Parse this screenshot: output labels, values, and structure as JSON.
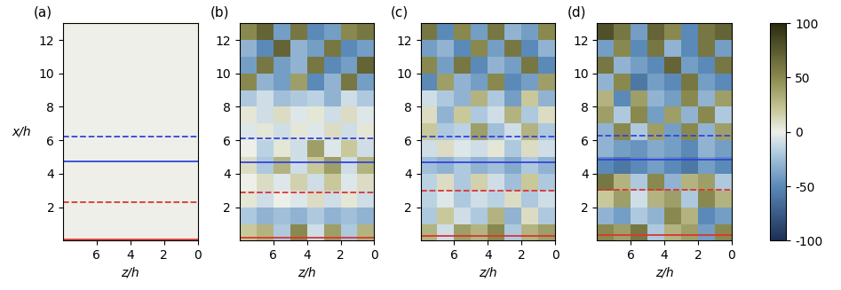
{
  "colorbar": {
    "lim": [
      -100,
      100
    ],
    "ticks": [
      -100,
      -50,
      0,
      50,
      100
    ]
  },
  "chart_data": [
    {
      "type": "heatmap",
      "title": "(a)",
      "xlabel": "z/h",
      "ylabel": "x/h",
      "xlim": [
        8,
        0
      ],
      "xticks": [
        6,
        4,
        2,
        0
      ],
      "ylim": [
        0,
        13
      ],
      "yticks": [
        2,
        4,
        6,
        8,
        10,
        12
      ],
      "z_bins": [
        0,
        1,
        2,
        3,
        4,
        5,
        6,
        7,
        8
      ],
      "x_bins": [
        0,
        1,
        2,
        3,
        4,
        5,
        6,
        7,
        8,
        9,
        10,
        11,
        12,
        13
      ],
      "cells": [
        [
          0,
          0,
          0,
          0,
          0,
          0,
          0,
          0
        ],
        [
          0,
          0,
          0,
          0,
          0,
          0,
          0,
          0
        ],
        [
          0,
          0,
          0,
          0,
          0,
          0,
          0,
          0
        ],
        [
          0,
          0,
          0,
          0,
          0,
          0,
          0,
          0
        ],
        [
          0,
          0,
          0,
          0,
          0,
          0,
          0,
          0
        ],
        [
          0,
          0,
          0,
          0,
          0,
          0,
          0,
          0
        ],
        [
          0,
          0,
          0,
          0,
          0,
          0,
          0,
          0
        ],
        [
          0,
          0,
          0,
          0,
          0,
          0,
          0,
          0
        ],
        [
          0,
          0,
          0,
          0,
          0,
          0,
          0,
          0
        ],
        [
          0,
          0,
          0,
          0,
          0,
          0,
          0,
          0
        ],
        [
          0,
          0,
          0,
          0,
          0,
          0,
          0,
          0
        ],
        [
          0,
          0,
          0,
          0,
          0,
          0,
          0,
          0
        ],
        [
          0,
          0,
          0,
          0,
          0,
          0,
          0,
          0
        ]
      ],
      "lines": [
        {
          "value": 6.2,
          "color": "#3344dd",
          "line_style": "dashed"
        },
        {
          "value": 4.75,
          "color": "#3344dd",
          "line_style": "solid"
        },
        {
          "value": 2.3,
          "color": "#dd3333",
          "line_style": "dashed"
        },
        {
          "value": 0.05,
          "color": "#dd3333",
          "line_style": "solid"
        }
      ]
    },
    {
      "type": "heatmap",
      "title": "(b)",
      "xlabel": "z/h",
      "xlim": [
        8,
        0
      ],
      "xticks": [
        6,
        4,
        2,
        0
      ],
      "ylim": [
        0,
        13
      ],
      "yticks": [
        2,
        4,
        6,
        8,
        10,
        12
      ],
      "z_bins": [
        0,
        1,
        2,
        3,
        4,
        5,
        6,
        7,
        8
      ],
      "x_bins": [
        0,
        1,
        2,
        3,
        4,
        5,
        6,
        7,
        8,
        9,
        10,
        11,
        12,
        13
      ],
      "cells": [
        [
          30,
          -20,
          40,
          -10,
          50,
          -20,
          30,
          20
        ],
        [
          -30,
          -25,
          -30,
          -20,
          -30,
          -25,
          -30,
          -20
        ],
        [
          -10,
          5,
          -10,
          10,
          -5,
          0,
          -10,
          5
        ],
        [
          10,
          -5,
          20,
          -10,
          15,
          -5,
          10,
          0
        ],
        [
          30,
          -10,
          40,
          20,
          -10,
          30,
          -20,
          10
        ],
        [
          -10,
          20,
          -5,
          40,
          -10,
          5,
          -15,
          0
        ],
        [
          5,
          -10,
          10,
          -5,
          5,
          -10,
          5,
          -5
        ],
        [
          -5,
          10,
          -10,
          5,
          -5,
          10,
          -10,
          5
        ],
        [
          -20,
          -10,
          -30,
          -15,
          -20,
          -25,
          -10,
          -20
        ],
        [
          -40,
          60,
          -30,
          -50,
          40,
          -40,
          -30,
          50
        ],
        [
          70,
          -40,
          -50,
          60,
          -30,
          -40,
          60,
          -40
        ],
        [
          -40,
          -50,
          60,
          -40,
          -30,
          70,
          -50,
          -30
        ],
        [
          60,
          50,
          -40,
          -50,
          60,
          -40,
          70,
          50
        ]
      ],
      "lines": [
        {
          "value": 6.1,
          "color": "#3344dd",
          "line_style": "dashed"
        },
        {
          "value": 4.7,
          "color": "#3344dd",
          "line_style": "solid"
        },
        {
          "value": 2.9,
          "color": "#dd3333",
          "line_style": "dashed"
        },
        {
          "value": 0.2,
          "color": "#dd3333",
          "line_style": "solid"
        }
      ]
    },
    {
      "type": "heatmap",
      "title": "(c)",
      "xlabel": "z/h",
      "xlim": [
        8,
        0
      ],
      "xticks": [
        6,
        4,
        2,
        0
      ],
      "ylim": [
        0,
        13
      ],
      "yticks": [
        2,
        4,
        6,
        8,
        10,
        12
      ],
      "z_bins": [
        0,
        1,
        2,
        3,
        4,
        5,
        6,
        7,
        8
      ],
      "x_bins": [
        0,
        1,
        2,
        3,
        4,
        5,
        6,
        7,
        8,
        9,
        10,
        11,
        12,
        13
      ],
      "cells": [
        [
          40,
          30,
          -20,
          50,
          30,
          40,
          -10,
          30
        ],
        [
          -20,
          10,
          -30,
          30,
          -20,
          -10,
          20,
          -20
        ],
        [
          -10,
          -20,
          10,
          -15,
          -10,
          -20,
          -5,
          -15
        ],
        [
          -20,
          20,
          -25,
          -10,
          15,
          -20,
          10,
          -15
        ],
        [
          -30,
          -20,
          -35,
          -25,
          -30,
          -20,
          -30,
          -25
        ],
        [
          -10,
          10,
          -20,
          5,
          -10,
          -5,
          10,
          -10
        ],
        [
          -20,
          30,
          -10,
          -25,
          40,
          -15,
          -20,
          20
        ],
        [
          10,
          -20,
          30,
          -10,
          -20,
          20,
          -30,
          10
        ],
        [
          -30,
          20,
          -40,
          -20,
          30,
          -30,
          -20,
          -10
        ],
        [
          40,
          -40,
          -50,
          50,
          -40,
          -30,
          40,
          -50
        ],
        [
          -50,
          60,
          -40,
          -30,
          -50,
          60,
          -40,
          50
        ],
        [
          -30,
          -50,
          60,
          -40,
          50,
          -50,
          -30,
          -40
        ],
        [
          50,
          -40,
          -30,
          60,
          -40,
          50,
          -50,
          60
        ]
      ],
      "lines": [
        {
          "value": 6.2,
          "color": "#3344dd",
          "line_style": "dashed"
        },
        {
          "value": 4.7,
          "color": "#3344dd",
          "line_style": "solid"
        },
        {
          "value": 3.0,
          "color": "#dd3333",
          "line_style": "dashed"
        },
        {
          "value": 0.3,
          "color": "#dd3333",
          "line_style": "solid"
        }
      ]
    },
    {
      "type": "heatmap",
      "title": "(d)",
      "xlabel": "z/h",
      "xlim": [
        8,
        0
      ],
      "xticks": [
        6,
        4,
        2,
        0
      ],
      "ylim": [
        0,
        13
      ],
      "yticks": [
        2,
        4,
        6,
        8,
        10,
        12
      ],
      "z_bins": [
        0,
        1,
        2,
        3,
        4,
        5,
        6,
        7,
        8
      ],
      "x_bins": [
        0,
        1,
        2,
        3,
        4,
        5,
        6,
        7,
        8,
        9,
        10,
        11,
        12,
        13
      ],
      "cells": [
        [
          50,
          -40,
          40,
          30,
          -20,
          60,
          40,
          50
        ],
        [
          -40,
          -50,
          30,
          50,
          -30,
          -20,
          -40,
          -30
        ],
        [
          30,
          50,
          -20,
          40,
          30,
          -10,
          40,
          20
        ],
        [
          -20,
          40,
          30,
          -30,
          50,
          -20,
          30,
          60
        ],
        [
          -50,
          -40,
          -60,
          -50,
          -40,
          -50,
          -60,
          -50
        ],
        [
          -40,
          -30,
          -50,
          -40,
          -35,
          -45,
          -40,
          -30
        ],
        [
          40,
          -30,
          50,
          -40,
          40,
          -20,
          50,
          -30
        ],
        [
          -20,
          50,
          -30,
          40,
          -40,
          50,
          -20,
          40
        ],
        [
          40,
          -30,
          50,
          -40,
          -30,
          40,
          -50,
          30
        ],
        [
          -50,
          -40,
          60,
          -50,
          -40,
          -60,
          50,
          -30
        ],
        [
          60,
          -50,
          -40,
          70,
          -50,
          -40,
          -30,
          60
        ],
        [
          -40,
          60,
          -50,
          -30,
          60,
          -50,
          50,
          -40
        ],
        [
          70,
          60,
          -50,
          50,
          70,
          -40,
          60,
          80
        ]
      ],
      "lines": [
        {
          "value": 6.3,
          "color": "#3344dd",
          "line_style": "dashed"
        },
        {
          "value": 4.85,
          "color": "#3344dd",
          "line_style": "solid"
        },
        {
          "value": 3.05,
          "color": "#dd3333",
          "line_style": "dashed"
        },
        {
          "value": 0.35,
          "color": "#dd3333",
          "line_style": "solid"
        }
      ]
    }
  ]
}
